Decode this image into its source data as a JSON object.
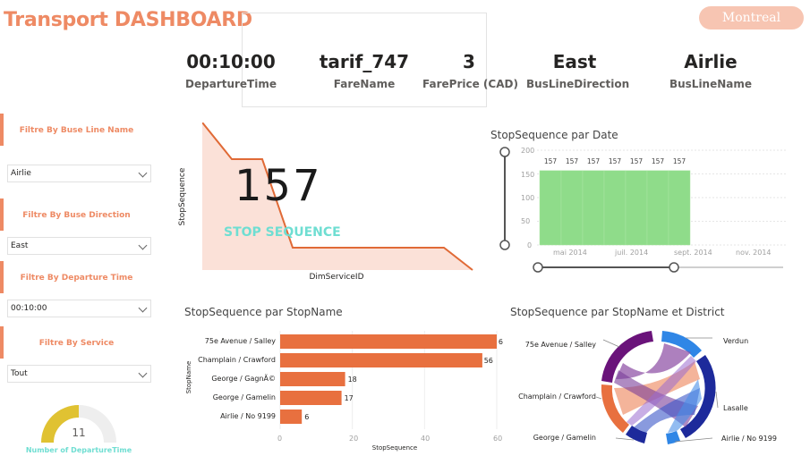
{
  "header": {
    "title": "Transport DASHBOARD",
    "city_button": "Montreal"
  },
  "kpis": [
    {
      "value": "00:10:00",
      "label": "DepartureTime"
    },
    {
      "value": "tarif_747",
      "label": "FareName"
    },
    {
      "value": "3",
      "label": "FarePrice (CAD)"
    },
    {
      "value": "East",
      "label": "BusLineDirection"
    },
    {
      "value": "Airlie",
      "label": "BusLineName"
    }
  ],
  "filters": [
    {
      "title": "Filtre By Buse Line Name",
      "value": "Airlie"
    },
    {
      "title": "Filtre By Buse Direction",
      "value": "East"
    },
    {
      "title": "Filtre By Departure Time",
      "value": "00:10:00"
    },
    {
      "title": "Filtre By Service",
      "value": "Tout"
    }
  ],
  "gauge": {
    "value": "11",
    "label": "Number of DepartureTime",
    "fraction": 0.5,
    "colors": {
      "fill": "#e0c232",
      "track": "#eeeeee"
    }
  },
  "area_card": {
    "big_number": "157",
    "overlay_label": "STOP SEQUENCE",
    "ylabel": "StopSequence",
    "xlabel": "DimServiceID",
    "colors": {
      "line": "#e06a36",
      "fill": "#fbe1d8",
      "overlay": "#6fded2"
    }
  },
  "chart_data": [
    {
      "type": "bar",
      "title": "StopSequence par Date",
      "ylim": [
        0,
        200
      ],
      "y_ticks": [
        "200",
        "150",
        "100",
        "50",
        "0"
      ],
      "x_ticks": [
        "mai 2014",
        "juil. 2014",
        "sept. 2014",
        "nov. 2014"
      ],
      "data_labels": [
        "157",
        "157",
        "157",
        "157",
        "157",
        "157",
        "157"
      ],
      "values": [
        157,
        157,
        157,
        157,
        157,
        157,
        157
      ],
      "color": "#8fdc8a"
    },
    {
      "type": "bar",
      "orientation": "horizontal",
      "title": "StopSequence par StopName",
      "xlabel": "StopSequence",
      "ylabel": "StopName",
      "categories": [
        "75e Avenue / Salley",
        "Champlain / Crawford",
        "George / GagnÃ©",
        "George / Gamelin",
        "Airlie / No 9199"
      ],
      "values": [
        60,
        56,
        18,
        17,
        6
      ],
      "x_ticks": [
        "0",
        "20",
        "40",
        "60"
      ],
      "xlim": [
        0,
        60
      ],
      "color": "#e8703f"
    },
    {
      "type": "chord",
      "title": "StopSequence par StopName et District",
      "left_labels": [
        "75e Avenue / Salley",
        "Champlain / Crawford",
        "George / Gamelin"
      ],
      "right_labels": [
        "Verdun",
        "Lasalle",
        "Airlie / No 9199"
      ]
    }
  ]
}
